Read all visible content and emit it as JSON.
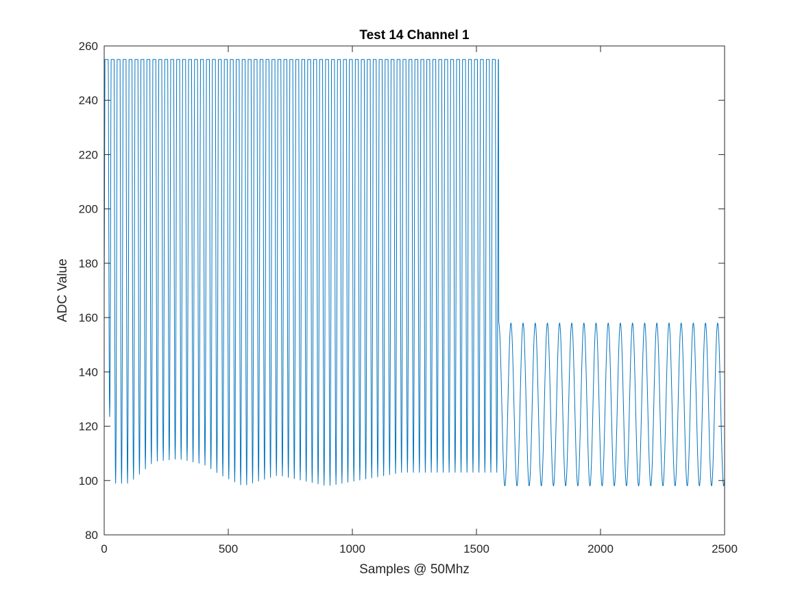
{
  "chart_data": {
    "type": "line",
    "title": "Test 14 Channel 1",
    "xlabel": "Samples @ 50Mhz",
    "ylabel": "ADC Value",
    "xlim": [
      0,
      2500
    ],
    "ylim": [
      80,
      260
    ],
    "xticks": [
      0,
      500,
      1000,
      1500,
      2000,
      2500
    ],
    "yticks": [
      80,
      100,
      120,
      140,
      160,
      180,
      200,
      220,
      240,
      260
    ],
    "xtick_labels": [
      "0",
      "500",
      "1000",
      "1500",
      "2000",
      "2500"
    ],
    "ytick_labels": [
      "80",
      "100",
      "120",
      "140",
      "160",
      "180",
      "200",
      "220",
      "240",
      "260"
    ],
    "grid": false,
    "line_color": "#0072BD",
    "series": [
      {
        "segments": [
          {
            "x_range": [
              0,
              1590
            ],
            "shape": "clipped oscillation",
            "period_samples": 24,
            "upper_level": 255,
            "shoulder_level": 158,
            "min_envelope": [
              [
                0,
                147
              ],
              [
                45,
                99
              ],
              [
                100,
                99
              ],
              [
                200,
                107
              ],
              [
                300,
                108
              ],
              [
                400,
                106
              ],
              [
                470,
                102
              ],
              [
                560,
                98
              ],
              [
                700,
                102
              ],
              [
                900,
                98
              ],
              [
                1200,
                103
              ],
              [
                1590,
                103
              ]
            ]
          },
          {
            "x_range": [
              1590,
              2500
            ],
            "shape": "sinusoid",
            "period_samples": 49,
            "max": 158,
            "min": 98
          }
        ]
      }
    ]
  }
}
